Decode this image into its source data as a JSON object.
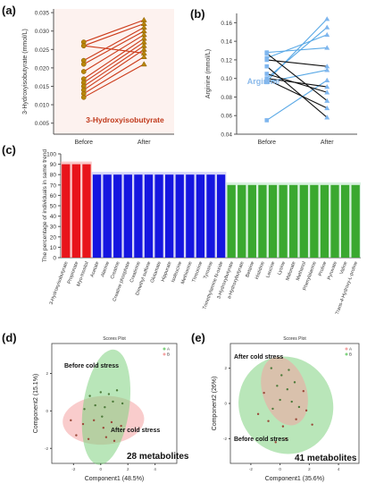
{
  "figure": {
    "panel_letters": [
      "(a)",
      "(b)",
      "(c)",
      "(d)",
      "(e)"
    ]
  },
  "chart_data": [
    {
      "panel": "(a)",
      "type": "line",
      "ylabel": "3-Hydroxyisobutyrate (mmol/L)",
      "categories": [
        "Before",
        "After"
      ],
      "annotation": "3-Hydroxyisobutyrate",
      "ylim": [
        0.002,
        0.036
      ],
      "yticks": [
        "0.005",
        "0.010",
        "0.015",
        "0.020",
        "0.025",
        "0.030",
        "0.035"
      ],
      "ytick_values": [
        0.005,
        0.01,
        0.015,
        0.02,
        0.025,
        0.03,
        0.035
      ],
      "colors": {
        "line": "#cc3b1a",
        "marker": "#b8860b",
        "bg": "#fbe3dc",
        "text": "#c0391b"
      },
      "pairs": [
        [
          0.027,
          0.033
        ],
        [
          0.026,
          0.032
        ],
        [
          0.022,
          0.031
        ],
        [
          0.021,
          0.03
        ],
        [
          0.019,
          0.029
        ],
        [
          0.017,
          0.028
        ],
        [
          0.016,
          0.027
        ],
        [
          0.015,
          0.026
        ],
        [
          0.014,
          0.025
        ],
        [
          0.013,
          0.023
        ],
        [
          0.012,
          0.021
        ],
        [
          0.026,
          0.024
        ]
      ]
    },
    {
      "panel": "(b)",
      "type": "line",
      "ylabel": "Arginine (mmol/L)",
      "categories": [
        "Before",
        "After"
      ],
      "annotation": "Arginine",
      "ylim": [
        0.04,
        0.17
      ],
      "yticks": [
        "0.04",
        "0.06",
        "0.08",
        "0.10",
        "0.12",
        "0.14",
        "0.16"
      ],
      "ytick_values": [
        0.04,
        0.06,
        0.08,
        0.1,
        0.12,
        0.14,
        0.16
      ],
      "colors": {
        "up": "#5aa9e6",
        "down": "#111111",
        "marker": "#7fb6ee",
        "text": "#8ab9ea"
      },
      "pairs": [
        [
          0.055,
          0.098
        ],
        [
          0.097,
          0.164
        ],
        [
          0.1,
          0.155
        ],
        [
          0.122,
          0.147
        ],
        [
          0.128,
          0.133
        ],
        [
          0.096,
          0.109
        ],
        [
          0.1,
          0.091
        ],
        [
          0.12,
          0.113
        ],
        [
          0.105,
          0.085
        ],
        [
          0.127,
          0.076
        ],
        [
          0.099,
          0.068
        ],
        [
          0.113,
          0.058
        ]
      ]
    },
    {
      "panel": "(c)",
      "type": "bar",
      "ylabel": "The percentage of individuals in same trend",
      "ylim": [
        0,
        100
      ],
      "yticks": [
        "0",
        "10",
        "20",
        "30",
        "40",
        "50",
        "60",
        "70",
        "80",
        "90",
        "100"
      ],
      "ytick_values": [
        0,
        10,
        20,
        30,
        40,
        50,
        60,
        70,
        80,
        90,
        100
      ],
      "categories": [
        "3-Hydroxyisobutyrate",
        "Propionate",
        "Myo-Inositol",
        "Acetate",
        "Alanine",
        "Creatine",
        "Creatine phosphate",
        "Creatinine",
        "Dimethyl sulfone",
        "Glutamate",
        "Hippurate",
        "Isoleucine",
        "Methionine",
        "Threonine",
        "Tyrosine",
        "Trimethylamine N-oxide",
        "3-Hydroxybutyrate",
        "a-Hydroxybutyrate",
        "Betaine",
        "Histidine",
        "Leucine",
        "Lysine",
        "Malonate",
        "Methanol",
        "Phenylalanine",
        "Proline",
        "Pyruvate",
        "Valine",
        "Trans-4-Hydroxy-L-proline"
      ],
      "values": [
        90,
        90,
        90,
        80,
        80,
        80,
        80,
        80,
        80,
        80,
        80,
        80,
        80,
        80,
        80,
        80,
        70,
        70,
        70,
        70,
        70,
        70,
        70,
        70,
        70,
        70,
        70,
        70,
        70
      ],
      "groups": [
        {
          "color": "#e8141b",
          "bg": "#f6a7a7",
          "count": 3
        },
        {
          "color": "#1515e0",
          "bg": "#b9b9f3",
          "count": 13
        },
        {
          "color": "#3aa82f",
          "bg": "#bfeacb",
          "count": 13
        }
      ]
    },
    {
      "panel": "(d)",
      "type": "scatter",
      "title": "Scores Plot",
      "xlabel": "Component1 (48.5%)",
      "ylabel": "Component2 (15.1%)",
      "legend": [
        "A",
        "B"
      ],
      "legend_position": "top-right",
      "annotations": [
        "Before cold stress",
        "After cold stress",
        "28 metabolites"
      ],
      "xticks": [
        "-2",
        "0",
        "2",
        "4"
      ],
      "yticks": [
        "-2",
        "0",
        "2"
      ],
      "xlim": [
        -3.6,
        5.6
      ],
      "ylim": [
        -2.8,
        3.6
      ],
      "xtick_values": [
        -2,
        0,
        2,
        4
      ],
      "ytick_values": [
        -2,
        0,
        2
      ],
      "ellipse_a": {
        "color": "#7fd27f",
        "center": [
          0.4,
          0.2
        ],
        "rx": 1.7,
        "ry": 3.1,
        "rot": 8
      },
      "ellipse_b": {
        "color": "#f4a3a3",
        "center": [
          0.2,
          -0.5
        ],
        "rx": 3.0,
        "ry": 1.3,
        "rot": -3
      },
      "points_a": [
        [
          -0.8,
          0.8
        ],
        [
          0.0,
          1.0
        ],
        [
          0.6,
          0.9
        ],
        [
          1.2,
          1.1
        ],
        [
          -0.4,
          0.3
        ],
        [
          0.3,
          0.2
        ],
        [
          0.9,
          0.5
        ],
        [
          1.6,
          0.4
        ],
        [
          -1.2,
          0.1
        ],
        [
          0.1,
          -0.3
        ]
      ],
      "points_b": [
        [
          -2.2,
          -0.5
        ],
        [
          -1.3,
          -0.7
        ],
        [
          -0.5,
          -0.5
        ],
        [
          0.2,
          -0.9
        ],
        [
          0.8,
          -0.6
        ],
        [
          1.5,
          -0.8
        ],
        [
          -1.8,
          -1.3
        ],
        [
          -0.9,
          -1.5
        ],
        [
          0.4,
          -1.4
        ],
        [
          1.0,
          -1.6
        ]
      ]
    },
    {
      "panel": "(e)",
      "type": "scatter",
      "title": "Scores Plot",
      "xlabel": "Component1 (35.6%)",
      "ylabel": "Component2 (26%)",
      "legend": [
        "A",
        "B"
      ],
      "legend_position": "top-right",
      "annotations": [
        "After cold stress",
        "Before cold stress",
        "41 metabolites"
      ],
      "xticks": [
        "-2",
        "0",
        "2",
        "4"
      ],
      "yticks": [
        "-2",
        "0",
        "2"
      ],
      "xlim": [
        -3.4,
        5.4
      ],
      "ylim": [
        -3.4,
        3.4
      ],
      "xtick_values": [
        -2,
        0,
        2,
        4
      ],
      "ytick_values": [
        -2,
        0,
        2
      ],
      "ellipse_a": {
        "color": "#f4a3a3",
        "center": [
          0.3,
          0.7
        ],
        "rx": 1.5,
        "ry": 2.0,
        "rot": -18
      },
      "ellipse_b": {
        "color": "#7fd27f",
        "center": [
          0.4,
          -0.1
        ],
        "rx": 3.2,
        "ry": 2.8,
        "rot": -30
      },
      "points_a": [
        [
          -0.6,
          2.0
        ],
        [
          0.1,
          1.6
        ],
        [
          0.6,
          1.9
        ],
        [
          -0.2,
          1.0
        ],
        [
          0.5,
          0.8
        ],
        [
          1.0,
          1.2
        ],
        [
          0.0,
          0.2
        ],
        [
          0.8,
          0.1
        ],
        [
          -0.5,
          -0.3
        ],
        [
          1.3,
          -0.2
        ]
      ],
      "points_b": [
        [
          -1.5,
          -0.6
        ],
        [
          -0.8,
          -1.0
        ],
        [
          0.2,
          -1.3
        ],
        [
          1.1,
          -0.9
        ],
        [
          1.8,
          -0.4
        ],
        [
          -1.1,
          0.6
        ],
        [
          1.6,
          0.7
        ],
        [
          0.4,
          -2.0
        ],
        [
          -0.3,
          -2.2
        ],
        [
          2.2,
          -1.2
        ]
      ]
    }
  ]
}
